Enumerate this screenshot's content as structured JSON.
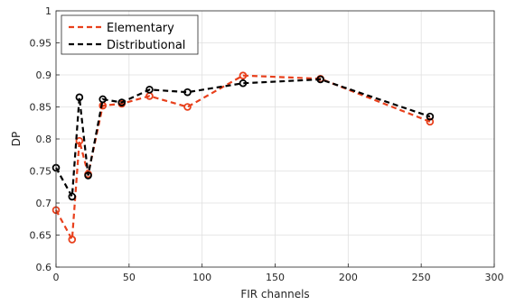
{
  "chart_data": {
    "type": "line",
    "title": "",
    "xlabel": "FIR channels",
    "ylabel": "DP",
    "xlim": [
      0,
      300
    ],
    "ylim": [
      0.6,
      1
    ],
    "xticks": [
      "0",
      "50",
      "100",
      "150",
      "200",
      "250",
      "300"
    ],
    "yticks": [
      "0.6",
      "0.65",
      "0.7",
      "0.75",
      "0.8",
      "0.85",
      "0.9",
      "0.95",
      "1"
    ],
    "grid": true,
    "legend_position": "top-left",
    "x": [
      0,
      11,
      16,
      22,
      32,
      45,
      64,
      90,
      128,
      181,
      256
    ],
    "series": [
      {
        "name": "Elementary",
        "color": "#e8401c",
        "values": [
          0.689,
          0.643,
          0.797,
          0.745,
          0.852,
          0.855,
          0.867,
          0.85,
          0.899,
          0.894,
          0.827
        ]
      },
      {
        "name": "Distributional",
        "color": "#000000",
        "values": [
          0.755,
          0.71,
          0.865,
          0.743,
          0.862,
          0.857,
          0.877,
          0.873,
          0.887,
          0.893,
          0.835
        ]
      }
    ]
  }
}
